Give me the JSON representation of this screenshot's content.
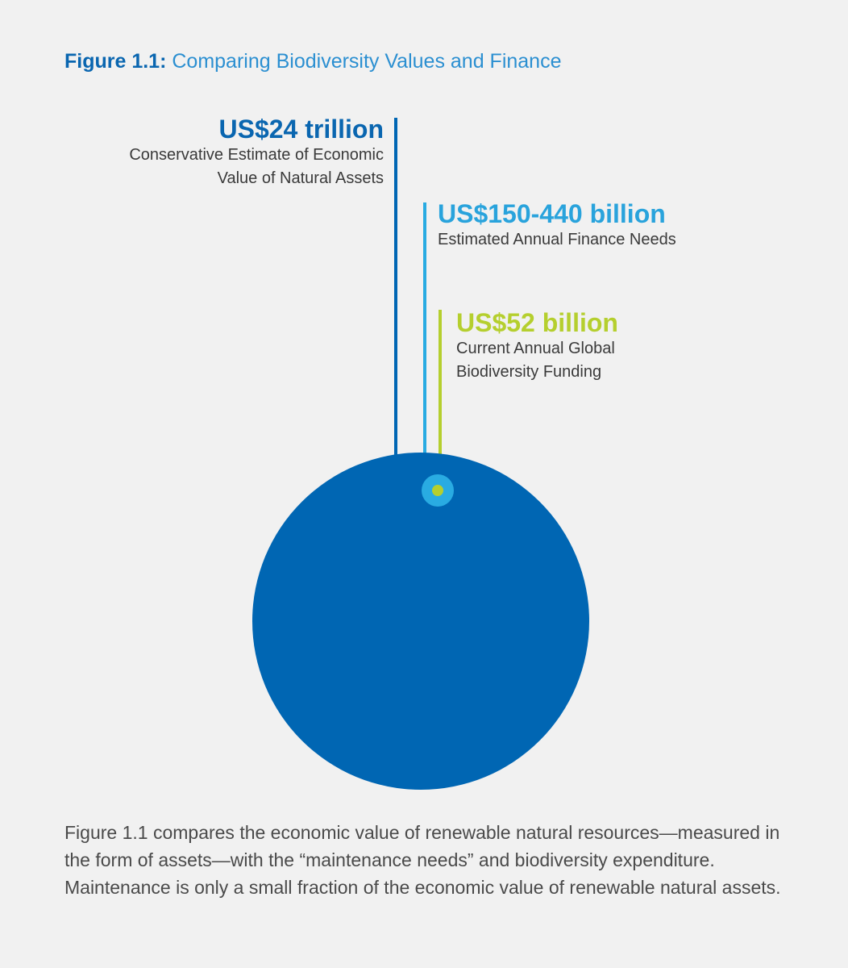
{
  "figure": {
    "label": "Figure 1.1:",
    "title": "Comparing Biodiversity Values and Finance"
  },
  "chart_data": {
    "type": "proportional-circle",
    "title": "Comparing Biodiversity Values and Finance",
    "items": [
      {
        "amount_label": "US$24 trillion",
        "description_lines": [
          "Conservative Estimate of Economic",
          "Value of Natural Assets"
        ],
        "value_usd_billion": 24000,
        "color": "#0066b3"
      },
      {
        "amount_label": "US$150-440 billion",
        "description_lines": [
          "Estimated Annual Finance Needs"
        ],
        "value_usd_billion": 440,
        "color": "#29abe2"
      },
      {
        "amount_label": "US$52 billion",
        "description_lines": [
          "Current Annual Global",
          "Biodiversity Funding"
        ],
        "value_usd_billion": 52,
        "color": "#b5cf2e"
      }
    ]
  },
  "caption": "Figure 1.1 compares the economic value of renewable natural resources—measured in the form of assets—with the “maintenance needs” and biodiversity expenditure.  Maintenance is only a small fraction of the economic value of renewable natural assets."
}
